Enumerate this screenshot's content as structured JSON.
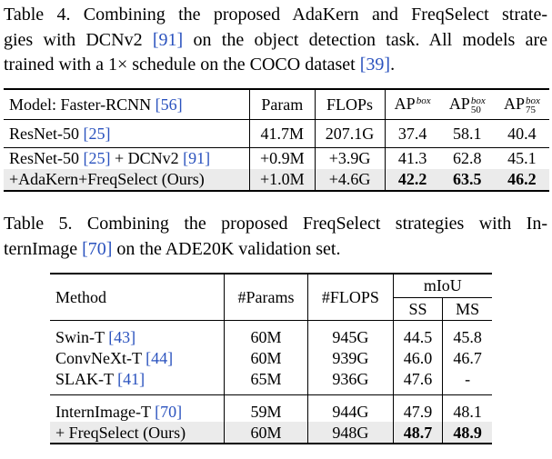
{
  "table4": {
    "caption": [
      [
        {
          "text": "Table 4. Combining the proposed AdaKern and FreqSelect strate-"
        }
      ],
      [
        {
          "text": "gies with DCNv2 "
        },
        {
          "cite": "[91]"
        },
        {
          "text": " on the object detection task. All models are"
        }
      ],
      [
        {
          "text": "trained with a 1× schedule on the COCO dataset "
        },
        {
          "cite": "[39]"
        },
        {
          "text": "."
        }
      ]
    ],
    "header": [
      [
        {
          "text": "Model: Faster-RCNN "
        },
        {
          "cite": "[56]"
        }
      ],
      "Param",
      "FLOPs",
      [
        {
          "text": "AP"
        },
        {
          "sup": "box"
        }
      ],
      [
        {
          "text": "AP"
        },
        {
          "sup": "box",
          "sub": "50"
        }
      ],
      [
        {
          "text": "AP"
        },
        {
          "sup": "box",
          "sub": "75"
        }
      ]
    ],
    "groups": [
      [
        [
          [
            {
              "text": "ResNet-50 "
            },
            {
              "cite": "[25]"
            }
          ],
          "41.7M",
          "207.1G",
          "37.4",
          "58.1",
          "40.4"
        ]
      ],
      [
        [
          [
            {
              "text": "ResNet-50 "
            },
            {
              "cite": "[25]"
            },
            {
              "text": " + DCNv2 "
            },
            {
              "cite": "[91]"
            }
          ],
          "+0.9M",
          "+3.9G",
          "41.3",
          "62.8",
          "45.1"
        ],
        [
          "+AdaKern+FreqSelect (Ours)",
          "+1.0M",
          "+4.6G",
          {
            "text": "42.2",
            "bold": true
          },
          {
            "text": "63.5",
            "bold": true
          },
          {
            "text": "46.2",
            "bold": true
          }
        ]
      ]
    ]
  },
  "table5": {
    "caption": [
      [
        {
          "text": "Table 5. Combining the proposed FreqSelect strategies with In-"
        }
      ],
      [
        {
          "text": "ternImage "
        },
        {
          "cite": "[70]"
        },
        {
          "text": " on the ADE20K validation set."
        }
      ]
    ],
    "header": {
      "columns": [
        "Method",
        "#Params",
        "#FLOPS"
      ],
      "group": "mIoU",
      "subcolumns": [
        "SS",
        "MS"
      ]
    },
    "groups": [
      [
        [
          [
            {
              "text": "Swin-T "
            },
            {
              "cite": "[43]"
            }
          ],
          "60M",
          "945G",
          "44.5",
          "45.8"
        ],
        [
          [
            {
              "text": "ConvNeXt-T "
            },
            {
              "cite": "[44]"
            }
          ],
          "60M",
          "939G",
          "46.0",
          "46.7"
        ],
        [
          [
            {
              "text": "SLAK-T "
            },
            {
              "cite": "[41]"
            }
          ],
          "65M",
          "936G",
          "47.6",
          "-"
        ]
      ],
      [
        [
          [
            {
              "text": "InternImage-T "
            },
            {
              "cite": "[70]"
            }
          ],
          "59M",
          "944G",
          "47.9",
          "48.1"
        ],
        [
          "+ FreqSelect (Ours)",
          "60M",
          "948G",
          {
            "text": "48.7",
            "bold": true
          },
          {
            "text": "48.9",
            "bold": true
          }
        ]
      ]
    ]
  }
}
